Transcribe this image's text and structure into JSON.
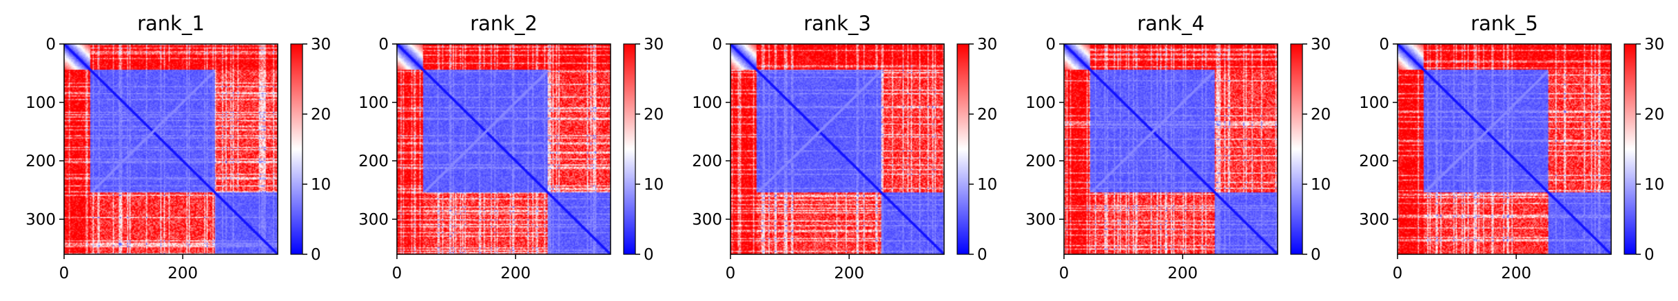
{
  "chart_data": [
    {
      "type": "heatmap",
      "title": "rank_1",
      "matrix_size": 360,
      "xticks": [
        0,
        200
      ],
      "yticks": [
        0,
        100,
        200,
        300
      ],
      "colorbar": {
        "min": 0,
        "max": 30,
        "ticks": [
          0,
          10,
          20,
          30
        ],
        "cmap": "bwr"
      },
      "block_boundaries": [
        45,
        255
      ],
      "diag_band_end": 45
    },
    {
      "type": "heatmap",
      "title": "rank_2",
      "matrix_size": 360,
      "xticks": [
        0,
        200
      ],
      "yticks": [
        0,
        100,
        200,
        300
      ],
      "colorbar": {
        "min": 0,
        "max": 30,
        "ticks": [
          0,
          10,
          20,
          30
        ],
        "cmap": "bwr"
      },
      "block_boundaries": [
        45,
        255
      ],
      "diag_band_end": 45
    },
    {
      "type": "heatmap",
      "title": "rank_3",
      "matrix_size": 360,
      "xticks": [
        0,
        200
      ],
      "yticks": [
        0,
        100,
        200,
        300
      ],
      "colorbar": {
        "min": 0,
        "max": 30,
        "ticks": [
          0,
          10,
          20,
          30
        ],
        "cmap": "bwr"
      },
      "block_boundaries": [
        45,
        255
      ],
      "diag_band_end": 45
    },
    {
      "type": "heatmap",
      "title": "rank_4",
      "matrix_size": 360,
      "xticks": [
        0,
        200
      ],
      "yticks": [
        0,
        100,
        200,
        300
      ],
      "colorbar": {
        "min": 0,
        "max": 30,
        "ticks": [
          0,
          10,
          20,
          30
        ],
        "cmap": "bwr"
      },
      "block_boundaries": [
        45,
        255
      ],
      "diag_band_end": 45
    },
    {
      "type": "heatmap",
      "title": "rank_5",
      "matrix_size": 360,
      "xticks": [
        0,
        200
      ],
      "yticks": [
        0,
        100,
        200,
        300
      ],
      "colorbar": {
        "min": 0,
        "max": 30,
        "ticks": [
          0,
          10,
          20,
          30
        ],
        "cmap": "bwr"
      },
      "block_boundaries": [
        45,
        255
      ],
      "diag_band_end": 45
    }
  ],
  "colors": {
    "low": "#0000ff",
    "mid": "#ffffff",
    "high": "#ff0000"
  }
}
